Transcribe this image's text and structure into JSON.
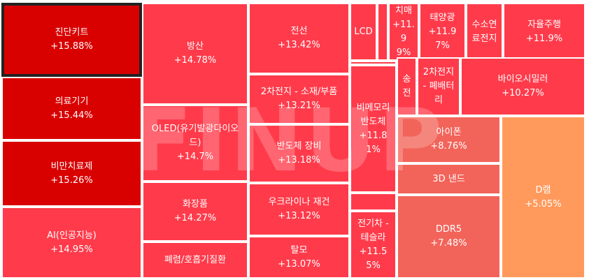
{
  "chart_data": {
    "type": "treemap",
    "unit": "%",
    "selected": "진단키트",
    "watermark": "FINUP",
    "colors": {
      "very_high": "#d90000",
      "high": "#ff3b4b",
      "mid": "#f2645a",
      "low": "#ff9a5c",
      "selected_border": "#222222"
    },
    "items": [
      {
        "name": "진단키트",
        "change": "+15.88%",
        "value": 15.88,
        "level": "very_high"
      },
      {
        "name": "의료기기",
        "change": "+15.44%",
        "value": 15.44,
        "level": "very_high"
      },
      {
        "name": "비만치료제",
        "change": "+15.26%",
        "value": 15.26,
        "level": "very_high"
      },
      {
        "name": "AI(인공지능)",
        "change": "+14.95%",
        "value": 14.95,
        "level": "high"
      },
      {
        "name": "방산",
        "change": "+14.78%",
        "value": 14.78,
        "level": "high"
      },
      {
        "name": "OLED(유기발광다이오\n드)",
        "change": "+14.7%",
        "value": 14.7,
        "level": "high"
      },
      {
        "name": "화장품",
        "change": "+14.27%",
        "value": 14.27,
        "level": "high"
      },
      {
        "name": "폐렴/호흡기질환",
        "change": "",
        "value": null,
        "level": "high"
      },
      {
        "name": "전선",
        "change": "+13.42%",
        "value": 13.42,
        "level": "high"
      },
      {
        "name": "2차전지 - 소재/부품",
        "change": "+13.21%",
        "value": 13.21,
        "level": "high"
      },
      {
        "name": "반도체 장비",
        "change": "+13.18%",
        "value": 13.18,
        "level": "high"
      },
      {
        "name": "우크라이나 재건",
        "change": "+13.12%",
        "value": 13.12,
        "level": "high"
      },
      {
        "name": "탈모",
        "change": "+13.07%",
        "value": 13.07,
        "level": "high"
      },
      {
        "name": "LCD",
        "change": "",
        "value": null,
        "level": "high"
      },
      {
        "name": "",
        "change": "",
        "value": null,
        "level": "high"
      },
      {
        "name": "치매",
        "change": "+11.9\n9%",
        "value": 11.99,
        "level": "high"
      },
      {
        "name": "태양광",
        "change": "+11.9\n7%",
        "value": 11.97,
        "level": "high"
      },
      {
        "name": "수소연\n료전지",
        "change": "",
        "value": null,
        "level": "high"
      },
      {
        "name": "자율주행",
        "change": "+11.9%",
        "value": 11.9,
        "level": "high"
      },
      {
        "name": "",
        "change": "",
        "value": null,
        "level": "high"
      },
      {
        "name": "비메모리\n반도체",
        "change": "+11.81%",
        "value": 11.81,
        "level": "high"
      },
      {
        "name": "",
        "change": "",
        "value": null,
        "level": "high"
      },
      {
        "name": "전기차 -\n테슬라",
        "change": "+11.55%",
        "value": 11.55,
        "level": "high"
      },
      {
        "name": "송\n전",
        "change": "",
        "value": null,
        "level": "high"
      },
      {
        "name": "2차전지\n- 폐배터\n리",
        "change": "",
        "value": null,
        "level": "high"
      },
      {
        "name": "바이오시밀러",
        "change": "+10.27%",
        "value": 10.27,
        "level": "high"
      },
      {
        "name": "",
        "change": "",
        "value": null,
        "level": "high"
      },
      {
        "name": "아이폰",
        "change": "+8.76%",
        "value": 8.76,
        "level": "mid"
      },
      {
        "name": "3D 낸드",
        "change": "",
        "value": null,
        "level": "mid"
      },
      {
        "name": "DDR5",
        "change": "+7.48%",
        "value": 7.48,
        "level": "mid"
      },
      {
        "name": "D램",
        "change": "+5.05%",
        "value": 5.05,
        "level": "low"
      }
    ]
  }
}
